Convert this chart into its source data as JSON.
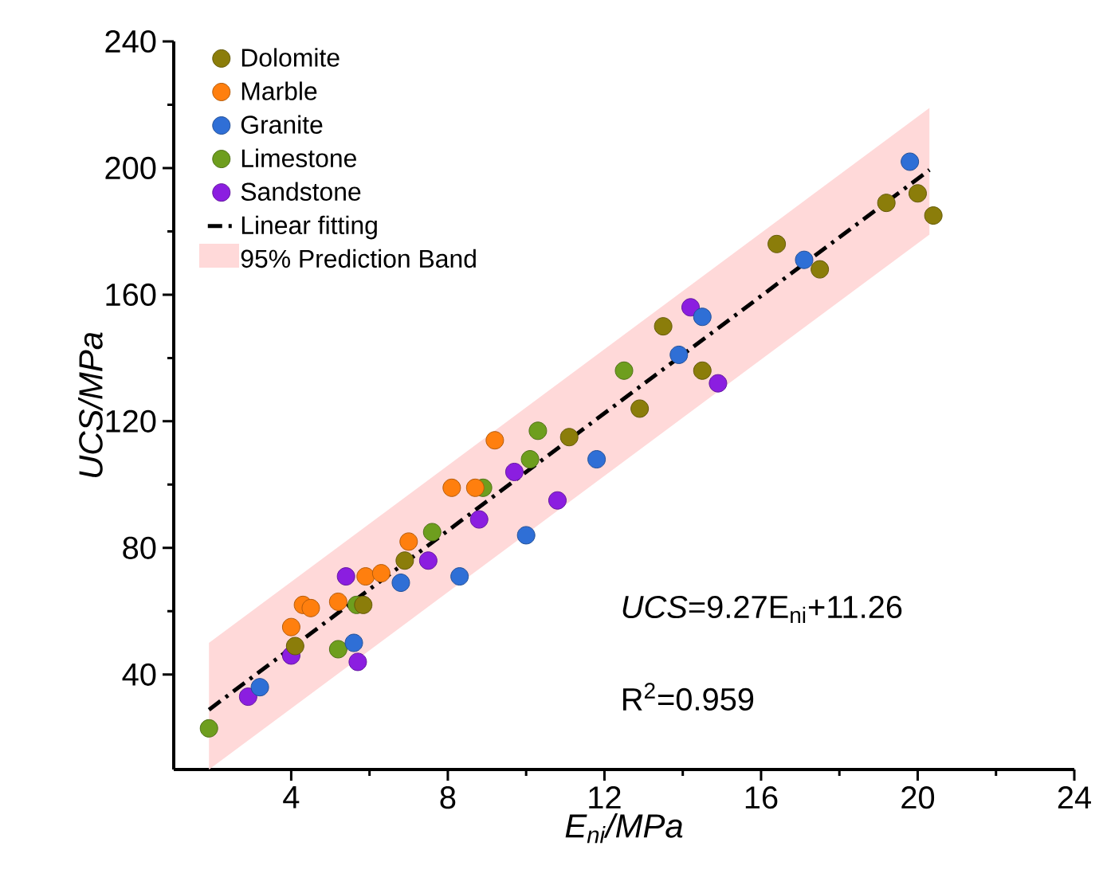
{
  "chart_data": {
    "type": "scatter",
    "xlabel": "E$_{ni}$/MPa",
    "ylabel": "UCS/MPa",
    "xlim": [
      1,
      24
    ],
    "ylim": [
      10,
      240
    ],
    "xticks": [
      4,
      8,
      12,
      16,
      20,
      24
    ],
    "yticks": [
      40,
      80,
      120,
      160,
      200,
      240
    ],
    "grid": false,
    "legend": "top left",
    "annotations": [
      "*UCS*=9.27E$_{ni}$+11.26",
      "R$^{2}$=0.959",
      "95% Prediction Band"
    ],
    "series": [
      {
        "name": "Dolomite",
        "color": "#8b7d0a",
        "marker": "circle",
        "x": [
          4.1,
          5.84,
          6.9,
          11.1,
          12.9,
          13.5,
          14.5,
          16.4,
          17.5,
          19.2,
          20.0,
          20.4
        ],
        "values": [
          49,
          62,
          76,
          115,
          124,
          150,
          136,
          176,
          168,
          189,
          192,
          185
        ]
      },
      {
        "name": "Marble",
        "color": "#ff7f0e",
        "marker": "circle",
        "x": [
          4.0,
          4.3,
          4.5,
          5.2,
          5.9,
          6.3,
          7.0,
          8.1,
          8.7,
          9.2
        ],
        "values": [
          55,
          62,
          61,
          63,
          71,
          72,
          82,
          99,
          99,
          114
        ]
      },
      {
        "name": "Granite",
        "color": "#2f6fd6",
        "marker": "circle",
        "x": [
          3.2,
          5.6,
          6.8,
          8.3,
          10.0,
          11.8,
          13.9,
          14.5,
          17.1,
          19.8
        ],
        "values": [
          36,
          50,
          69,
          71,
          84,
          108,
          141,
          153,
          171,
          202
        ]
      },
      {
        "name": "Limestone",
        "color": "#6e9e1e",
        "marker": "circle",
        "x": [
          1.9,
          5.2,
          5.67,
          7.6,
          8.9,
          10.1,
          10.3,
          12.5
        ],
        "values": [
          23,
          48,
          62,
          85,
          99,
          108,
          117,
          136
        ]
      },
      {
        "name": "Sandstone",
        "color": "#8b1ee0",
        "marker": "circle",
        "x": [
          2.9,
          4.0,
          5.4,
          5.7,
          7.5,
          8.8,
          9.7,
          10.8,
          14.2,
          14.9
        ],
        "values": [
          33,
          46,
          71,
          44,
          76,
          89,
          104,
          95,
          156,
          132
        ]
      },
      {
        "type": "line",
        "name": "Linear fitting",
        "color": "#000000",
        "line_style": "dashdot",
        "marker": "none",
        "x": [
          1.9,
          11.1,
          20.3
        ],
        "values": [
          28.9,
          114.2,
          199.4
        ],
        "lower": [
          10,
          94.5,
          179
        ],
        "upper": [
          50,
          134.5,
          219
        ]
      }
    ]
  }
}
